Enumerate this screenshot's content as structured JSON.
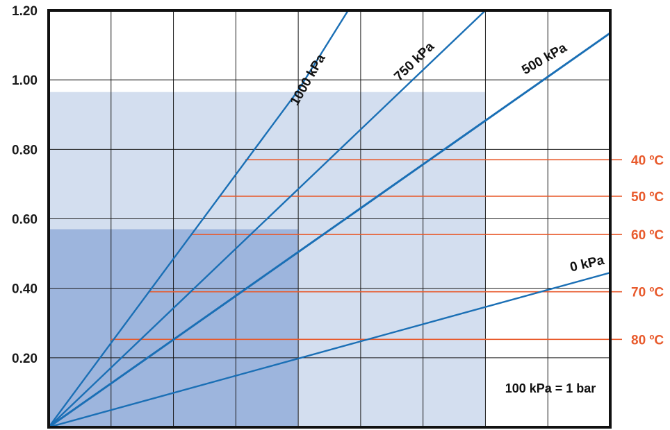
{
  "chart_data": {
    "type": "line",
    "title": "",
    "xlabel": "",
    "ylabel": "",
    "ylim": [
      0,
      1.2
    ],
    "xlim": [
      0,
      9
    ],
    "grid": true,
    "y_ticks": [
      "1.20",
      "1.00",
      "0.80",
      "0.60",
      "0.40",
      "0.20"
    ],
    "y_tick_values": [
      1.2,
      1.0,
      0.8,
      0.6,
      0.4,
      0.2
    ],
    "series": [
      {
        "name": "1000 kPa",
        "x": [
          0,
          4,
          4.8
        ],
        "y": [
          0,
          0.97,
          1.2
        ]
      },
      {
        "name": "750 kPa",
        "x": [
          0,
          7
        ],
        "y": [
          0,
          1.2
        ]
      },
      {
        "name": "500 kPa",
        "x": [
          0,
          9
        ],
        "y": [
          0,
          1.135
        ]
      },
      {
        "name": "0 kPa",
        "x": [
          0,
          9
        ],
        "y": [
          0,
          0.445
        ]
      }
    ],
    "shaded_regions": [
      {
        "x": [
          0,
          7
        ],
        "y": [
          0,
          0.965
        ],
        "color": "#d3deef"
      },
      {
        "x": [
          0,
          4
        ],
        "y": [
          0,
          0.57
        ],
        "color": "#9db5dd"
      }
    ],
    "temperature_lines": [
      {
        "label": "40 ºC",
        "y": 0.77,
        "x_start": 3.15
      },
      {
        "label": "50 ºC",
        "y": 0.665,
        "x_start": 2.75
      },
      {
        "label": "60 ºC",
        "y": 0.555,
        "x_start": 2.3
      },
      {
        "label": "70 ºC",
        "y": 0.39,
        "x_start": 1.6
      },
      {
        "label": "80 ºC",
        "y": 0.253,
        "x_start": 1.0
      }
    ],
    "annotation": "100 kPa = 1 bar",
    "colors": {
      "pressure_line": "#1a6fb5",
      "temperature_line": "#e85a2c",
      "temperature_text": "#e85a2c",
      "light_region": "#d3deef",
      "dark_region": "#9db5dd",
      "grid": "#1a1a1a"
    }
  }
}
